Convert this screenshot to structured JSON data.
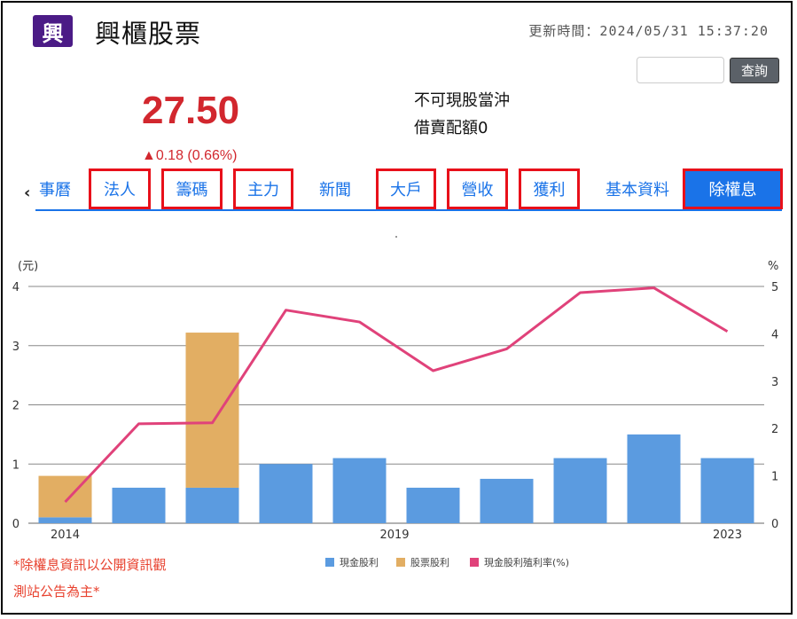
{
  "header": {
    "logo_char": "興",
    "stock_name": "興櫃股票",
    "update_time": "更新時間：2024/05/31 15:37:20",
    "search_button": "查詢"
  },
  "quote": {
    "price": "27.50",
    "change": "▲0.18 (0.66%)",
    "info_line1": "不可現股當沖",
    "info_line2": "借賣配額0"
  },
  "tabs": {
    "scroll_left": "‹",
    "items": [
      {
        "label": "事曆"
      },
      {
        "label": "法人"
      },
      {
        "label": "籌碼"
      },
      {
        "label": "主力"
      },
      {
        "label": "新聞"
      },
      {
        "label": "大戶"
      },
      {
        "label": "營收"
      },
      {
        "label": "獲利"
      },
      {
        "label": "基本資料"
      },
      {
        "label": "除權息"
      }
    ],
    "active": "除權息"
  },
  "chart_data": {
    "type": "bar",
    "y_left_unit": "(元)",
    "y_right_unit": "%",
    "y_left_ticks": [
      "0",
      "1",
      "2",
      "3",
      "4"
    ],
    "y_right_ticks": [
      "0",
      "1",
      "2",
      "3",
      "4",
      "5"
    ],
    "ylim_left": [
      0,
      4
    ],
    "ylim_right": [
      0,
      5
    ],
    "x_tick_labels": [
      "2014",
      "2019",
      "2023"
    ],
    "grid": true,
    "series": [
      {
        "name": "現金股利",
        "color": "#5b9be0",
        "stacked": true,
        "values": [
          0.1,
          0.6,
          0.6,
          1.0,
          1.1,
          0.6,
          0.75,
          1.1,
          1.5,
          1.1
        ]
      },
      {
        "name": "股票股利",
        "color": "#e2ae63",
        "stacked": true,
        "values": [
          0.7,
          0,
          2.62,
          0,
          0,
          0,
          0,
          0,
          0,
          0
        ]
      },
      {
        "name": "現金股利殖利率(%)",
        "color": "#e0427a",
        "axis": "right",
        "values": [
          0.45,
          2.1,
          2.12,
          4.5,
          4.25,
          3.22,
          3.68,
          4.87,
          4.97,
          4.05
        ]
      }
    ],
    "legend_position": "bottom"
  },
  "footer_note": {
    "line1": "*除權息資訊以公開資訊觀",
    "line2": "測站公告為主*"
  }
}
